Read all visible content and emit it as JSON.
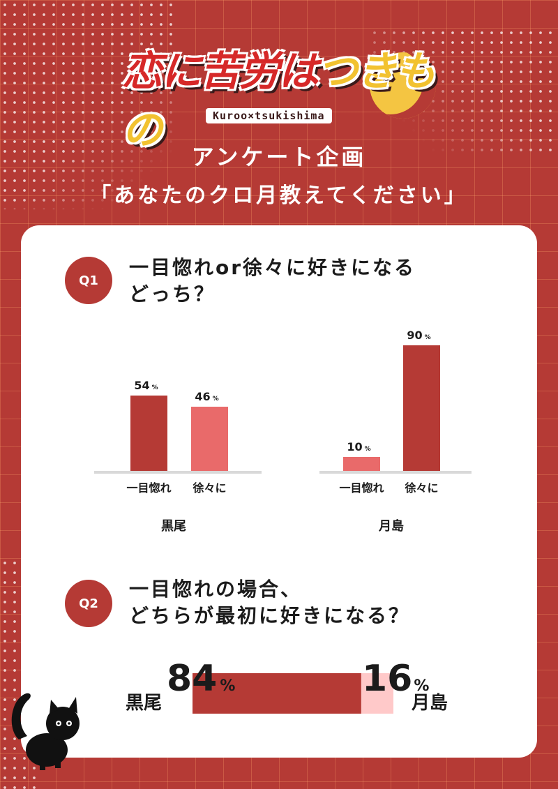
{
  "logo": {
    "title_part1": "恋に苦労は",
    "title_part2": "つきもの",
    "subtitle": "Kuroo×tsukishima"
  },
  "heading": {
    "line1": "アンケート企画",
    "line2": "「あなたのクロ月教えてください」"
  },
  "q1": {
    "badge": "Q1",
    "question": "一目惚れor徐々に好きになる\nどっち？"
  },
  "q2": {
    "badge": "Q2",
    "question": "一目惚れの場合、\nどちらが最初に好きになる？"
  },
  "colors": {
    "background": "#b53a35",
    "dark_bar": "#b53a35",
    "light_bar": "#e96a6a",
    "pale_bar": "#ffc9c9"
  },
  "chart_data": [
    {
      "type": "bar",
      "title": "黒尾",
      "categories": [
        "一目惚れ",
        "徐々に"
      ],
      "values": [
        54,
        46
      ],
      "value_unit": "%",
      "bar_colors": [
        "#b53a35",
        "#e96a6a"
      ],
      "ylim": [
        0,
        100
      ]
    },
    {
      "type": "bar",
      "title": "月島",
      "categories": [
        "一目惚れ",
        "徐々に"
      ],
      "values": [
        10,
        90
      ],
      "value_unit": "%",
      "bar_colors": [
        "#e96a6a",
        "#b53a35"
      ],
      "ylim": [
        0,
        100
      ]
    },
    {
      "type": "bar",
      "orientation": "horizontal-stacked",
      "categories": [
        "黒尾",
        "月島"
      ],
      "values": [
        84,
        16
      ],
      "value_unit": "%",
      "bar_colors": [
        "#b53a35",
        "#ffc9c9"
      ]
    }
  ]
}
